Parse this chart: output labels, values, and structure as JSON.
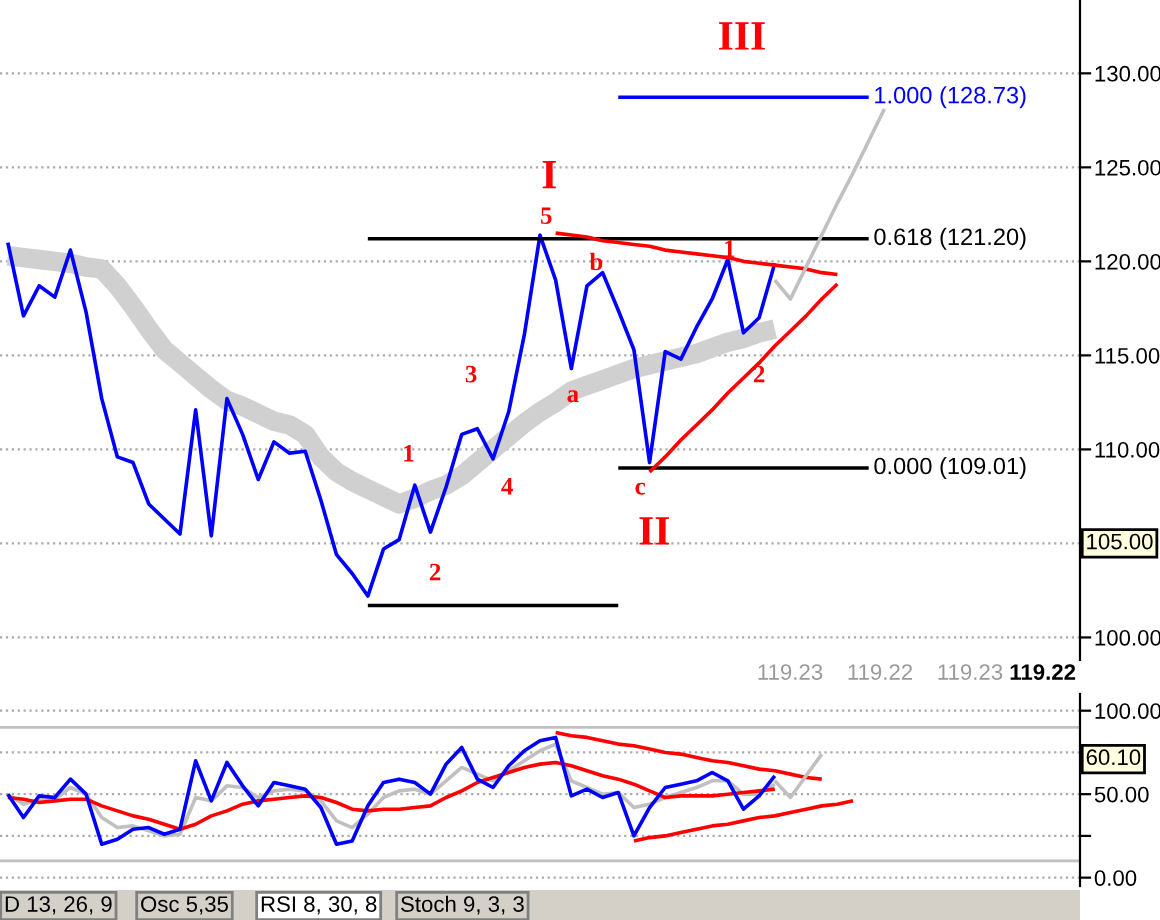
{
  "chart_data": [
    {
      "type": "line",
      "categories": [
        null,
        null,
        null,
        null,
        null,
        null,
        null,
        null,
        null,
        null,
        null,
        null,
        null,
        null,
        null,
        null,
        null,
        null,
        null,
        null,
        null,
        null,
        null,
        null,
        null,
        null,
        null,
        null,
        null,
        null,
        null,
        null,
        null,
        null,
        null,
        null,
        null,
        null,
        null,
        null,
        null,
        null,
        null,
        null,
        null,
        null,
        null,
        null,
        null,
        null,
        null,
        null,
        null,
        null,
        null,
        null,
        null,
        null,
        null,
        null,
        null,
        null,
        null,
        null,
        null,
        null,
        null,
        null,
        null
      ],
      "ylim": [
        98.8,
        133.9
      ],
      "yticks": [
        {
          "value": 100,
          "label": "100.00"
        },
        {
          "value": 105,
          "label": null
        },
        {
          "value": 110,
          "label": "110.00"
        },
        {
          "value": 115,
          "label": "115.00"
        },
        {
          "value": 120,
          "label": "120.00"
        },
        {
          "value": 125,
          "label": "125.00"
        },
        {
          "value": 130,
          "label": "130.00"
        }
      ],
      "grid": "y",
      "tick_labels": "y",
      "series": [
        {
          "color": "#d0d0d0",
          "values": [
            120.3,
            120.2,
            120.1,
            120.0,
            119.9,
            119.7,
            119.6,
            118.7,
            117.6,
            116.4,
            115.3,
            114.6,
            113.9,
            113.2,
            112.6,
            112.3,
            111.9,
            111.5,
            111.3,
            110.8,
            109.6,
            108.8,
            108.3,
            107.9,
            107.5,
            107.1,
            107.4,
            107.8,
            108.1,
            108.6,
            109.3,
            110.0,
            110.7,
            111.4,
            112.0,
            112.5,
            113.1,
            113.4,
            113.7,
            114.0,
            114.3,
            114.5,
            114.7,
            114.9,
            115.1,
            115.4,
            115.7,
            115.9,
            116.2,
            116.4,
            null,
            null,
            null,
            null,
            null,
            null,
            null,
            null,
            null,
            null,
            null,
            null,
            null,
            null,
            null,
            null,
            null,
            null,
            null
          ]
        },
        {
          "color": "#0000ff",
          "values": [
            121.0,
            117.1,
            118.7,
            118.1,
            120.6,
            117.3,
            112.7,
            109.6,
            109.3,
            107.1,
            106.3,
            105.5,
            112.1,
            105.4,
            112.7,
            110.8,
            108.4,
            110.4,
            109.8,
            109.9,
            107.3,
            104.4,
            103.4,
            102.2,
            104.7,
            105.2,
            108.1,
            105.6,
            108.0,
            110.8,
            111.1,
            109.5,
            112.0,
            116.1,
            121.4,
            119.0,
            114.3,
            118.7,
            119.4,
            117.4,
            115.3,
            109.3,
            115.2,
            114.8,
            116.5,
            118.0,
            120.1,
            116.2,
            117.0,
            119.9,
            null,
            null,
            null,
            null,
            null,
            null,
            null,
            null,
            null,
            null,
            null,
            null,
            null,
            null,
            null,
            null,
            null,
            null,
            null
          ]
        },
        {
          "color": "#000000",
          "values": [
            null,
            null,
            null,
            null,
            null,
            null,
            null,
            null,
            null,
            null,
            null,
            null,
            null,
            null,
            null,
            null,
            null,
            null,
            null,
            null,
            null,
            null,
            null,
            101.7,
            101.7,
            101.7,
            101.7,
            101.7,
            101.7,
            101.7,
            101.7,
            101.7,
            101.7,
            101.7,
            101.7,
            101.7,
            101.7,
            101.7,
            101.7,
            101.7,
            null,
            null,
            null,
            null,
            null,
            null,
            null,
            null,
            null,
            null,
            null,
            null,
            null,
            null,
            null,
            null,
            null,
            null,
            null,
            null,
            null,
            null,
            null,
            null,
            null,
            null,
            null,
            null,
            null
          ]
        },
        {
          "color": "#000000",
          "values": [
            null,
            null,
            null,
            null,
            null,
            null,
            null,
            null,
            null,
            null,
            null,
            null,
            null,
            null,
            null,
            null,
            null,
            null,
            null,
            null,
            null,
            null,
            null,
            121.2,
            121.2,
            121.2,
            121.2,
            121.2,
            121.2,
            121.2,
            121.2,
            121.2,
            121.2,
            121.2,
            121.2,
            121.2,
            121.2,
            121.2,
            121.2,
            121.2,
            121.2,
            121.2,
            121.2,
            121.2,
            121.2,
            121.2,
            121.2,
            121.2,
            121.2,
            121.2,
            121.2,
            121.2,
            121.2,
            121.2,
            121.2,
            121.2,
            null,
            null,
            null,
            null,
            null,
            null,
            null,
            null,
            null,
            null,
            null,
            null,
            null
          ]
        },
        {
          "color": "#000000",
          "values": [
            null,
            null,
            null,
            null,
            null,
            null,
            null,
            null,
            null,
            null,
            null,
            null,
            null,
            null,
            null,
            null,
            null,
            null,
            null,
            null,
            null,
            null,
            null,
            null,
            null,
            null,
            null,
            null,
            null,
            null,
            null,
            null,
            null,
            null,
            null,
            null,
            null,
            null,
            null,
            109.01,
            109.01,
            109.01,
            109.01,
            109.01,
            109.01,
            109.01,
            109.01,
            109.01,
            109.01,
            109.01,
            109.01,
            109.01,
            109.01,
            109.01,
            109.01,
            109.01,
            null,
            null,
            null,
            null,
            null,
            null,
            null,
            null,
            null,
            null,
            null,
            null,
            null
          ]
        },
        {
          "color": "#0000ff",
          "values": [
            null,
            null,
            null,
            null,
            null,
            null,
            null,
            null,
            null,
            null,
            null,
            null,
            null,
            null,
            null,
            null,
            null,
            null,
            null,
            null,
            null,
            null,
            null,
            null,
            null,
            null,
            null,
            null,
            null,
            null,
            null,
            null,
            null,
            null,
            null,
            null,
            null,
            null,
            null,
            128.73,
            128.73,
            128.73,
            128.73,
            128.73,
            128.73,
            128.73,
            128.73,
            128.73,
            128.73,
            128.73,
            128.73,
            128.73,
            128.73,
            128.73,
            128.73,
            128.73,
            null,
            null,
            null,
            null,
            null,
            null,
            null,
            null,
            null,
            null,
            null,
            null,
            null
          ]
        },
        {
          "color": "#ff0000",
          "values": [
            null,
            null,
            null,
            null,
            null,
            null,
            null,
            null,
            null,
            null,
            null,
            null,
            null,
            null,
            null,
            null,
            null,
            null,
            null,
            null,
            null,
            null,
            null,
            null,
            null,
            null,
            null,
            null,
            null,
            null,
            null,
            null,
            null,
            null,
            null,
            121.5,
            121.4,
            121.3,
            121.1,
            121.0,
            120.9,
            120.8,
            120.6,
            120.5,
            120.4,
            120.3,
            120.2,
            120.0,
            119.9,
            119.8,
            119.7,
            119.6,
            119.4,
            119.3,
            null,
            null,
            null,
            null,
            null,
            null,
            null,
            null,
            null,
            null,
            null,
            null,
            null,
            null,
            null
          ]
        },
        {
          "color": "#ff0000",
          "values": [
            null,
            null,
            null,
            null,
            null,
            null,
            null,
            null,
            null,
            null,
            null,
            null,
            null,
            null,
            null,
            null,
            null,
            null,
            null,
            null,
            null,
            null,
            null,
            null,
            null,
            null,
            null,
            null,
            null,
            null,
            null,
            null,
            null,
            null,
            null,
            null,
            null,
            null,
            null,
            null,
            null,
            108.8,
            109.6,
            110.5,
            111.3,
            112.1,
            113.0,
            113.8,
            114.6,
            115.5,
            116.3,
            117.1,
            118.0,
            118.8,
            null,
            null,
            null,
            null,
            null,
            null,
            null,
            null,
            null,
            null,
            null,
            null,
            null,
            null,
            null
          ]
        },
        {
          "color": "#c0c0c0",
          "values": [
            null,
            null,
            null,
            null,
            null,
            null,
            null,
            null,
            null,
            null,
            null,
            null,
            null,
            null,
            null,
            null,
            null,
            null,
            null,
            null,
            null,
            null,
            null,
            null,
            null,
            null,
            null,
            null,
            null,
            null,
            null,
            null,
            null,
            null,
            null,
            null,
            null,
            null,
            null,
            null,
            null,
            null,
            null,
            null,
            null,
            null,
            null,
            null,
            null,
            119.0,
            118.0,
            119.7,
            121.4,
            123.1,
            124.7,
            126.4,
            128.1,
            null,
            null,
            null,
            null,
            null,
            null,
            null,
            null,
            null,
            null,
            null,
            null
          ]
        }
      ],
      "annotations": [
        "I",
        "5",
        "b",
        "1",
        "a",
        "2",
        "c",
        "II",
        "III",
        "1",
        "2",
        "3",
        "4",
        "0.618 (121.20)",
        "0.000 (109.01)",
        "1.000 (128.73)",
        {
          "text": "105.00",
          "y": 105
        },
        "119.23",
        "119.22",
        "119.23",
        "119.22"
      ]
    },
    {
      "type": "line",
      "categories": [
        null,
        null,
        null,
        null,
        null,
        null,
        null,
        null,
        null,
        null,
        null,
        null,
        null,
        null,
        null,
        null,
        null,
        null,
        null,
        null,
        null,
        null,
        null,
        null,
        null,
        null,
        null,
        null,
        null,
        null,
        null,
        null,
        null,
        null,
        null,
        null,
        null,
        null,
        null,
        null,
        null,
        null,
        null,
        null,
        null,
        null,
        null,
        null,
        null,
        null,
        null,
        null,
        null,
        null,
        null,
        null,
        null,
        null,
        null,
        null,
        null,
        null,
        null,
        null,
        null,
        null,
        null,
        null,
        null
      ],
      "ylim": [
        -5,
        110
      ],
      "yticks": [
        {
          "value": 0,
          "label": "0.00"
        },
        {
          "value": 25,
          "label": null
        },
        {
          "value": 50,
          "label": "50.00"
        },
        {
          "value": 75,
          "label": null
        },
        {
          "value": 100,
          "label": "100.00"
        }
      ],
      "grid": "y",
      "tick_labels": "y",
      "series": [
        {
          "color": "#c0c0c0",
          "values": [
            50,
            44,
            47,
            47,
            54,
            50,
            36,
            30,
            31,
            28,
            25,
            26,
            48,
            46,
            55,
            54,
            48,
            52,
            53,
            52,
            46,
            34,
            30,
            38,
            48,
            52,
            53,
            50,
            58,
            66,
            62,
            58,
            64,
            70,
            76,
            80,
            58,
            54,
            50,
            51,
            42,
            44,
            48,
            51,
            54,
            58,
            58,
            50,
            50,
            56,
            null,
            null,
            null,
            null,
            null,
            null,
            null,
            null,
            null,
            null,
            null,
            null,
            null,
            null,
            null,
            null,
            null,
            null,
            null
          ]
        },
        {
          "color": "#ff0000",
          "values": [
            48,
            47,
            45,
            46,
            47,
            47,
            43,
            40,
            37,
            35,
            32,
            29,
            32,
            37,
            40,
            44,
            46,
            47,
            48,
            49,
            48,
            45,
            41,
            40,
            41,
            41,
            42,
            43,
            48,
            52,
            57,
            60,
            63,
            66,
            68,
            69,
            67,
            64,
            61,
            59,
            56,
            52,
            48,
            49,
            49,
            49,
            50,
            51,
            52,
            53,
            null,
            null,
            null,
            null,
            null,
            null,
            null,
            null,
            null,
            null,
            null,
            null,
            null,
            null,
            null,
            null,
            null,
            null,
            null
          ]
        },
        {
          "color": "#0000ff",
          "values": [
            50,
            36,
            49,
            48,
            59,
            50,
            20,
            23,
            29,
            30,
            26,
            29,
            70,
            46,
            69,
            55,
            43,
            57,
            55,
            53,
            42,
            20,
            22,
            43,
            57,
            59,
            57,
            50,
            68,
            78,
            59,
            54,
            67,
            76,
            82,
            84,
            49,
            53,
            48,
            51,
            25,
            42,
            54,
            56,
            58,
            63,
            58,
            41,
            49,
            61,
            null,
            null,
            null,
            null,
            null,
            null,
            null,
            null,
            null,
            null,
            null,
            null,
            null,
            null,
            null,
            null,
            null,
            null,
            null
          ]
        },
        {
          "color": "#ff0000",
          "values": [
            null,
            null,
            null,
            null,
            null,
            null,
            null,
            null,
            null,
            null,
            null,
            null,
            null,
            null,
            null,
            null,
            null,
            null,
            null,
            null,
            null,
            null,
            null,
            null,
            null,
            null,
            null,
            null,
            null,
            null,
            null,
            null,
            null,
            null,
            null,
            87,
            85,
            84,
            82,
            80,
            79,
            77,
            75,
            74,
            72,
            70,
            69,
            67,
            65,
            64,
            62,
            60,
            59,
            null,
            null,
            null,
            null,
            null,
            null,
            null,
            null,
            null,
            null,
            null,
            null,
            null,
            null,
            null,
            null
          ]
        },
        {
          "color": "#ff0000",
          "values": [
            null,
            null,
            null,
            null,
            null,
            null,
            null,
            null,
            null,
            null,
            null,
            null,
            null,
            null,
            null,
            null,
            null,
            null,
            null,
            null,
            null,
            null,
            null,
            null,
            null,
            null,
            null,
            null,
            null,
            null,
            null,
            null,
            null,
            null,
            null,
            null,
            null,
            null,
            null,
            null,
            22,
            24,
            25,
            27,
            29,
            31,
            32,
            34,
            36,
            37,
            39,
            41,
            43,
            44,
            46,
            null,
            null,
            null,
            null,
            null,
            null,
            null,
            null,
            null,
            null,
            null,
            null,
            null,
            null
          ]
        },
        {
          "color": "#c0c0c0",
          "values": [
            null,
            null,
            null,
            null,
            null,
            null,
            null,
            null,
            null,
            null,
            null,
            null,
            null,
            null,
            null,
            null,
            null,
            null,
            null,
            null,
            null,
            null,
            null,
            null,
            null,
            null,
            null,
            null,
            null,
            null,
            null,
            null,
            null,
            null,
            null,
            null,
            null,
            null,
            null,
            null,
            null,
            null,
            null,
            null,
            null,
            null,
            null,
            null,
            null,
            58,
            48,
            61,
            74,
            null,
            null,
            null,
            null,
            null,
            null,
            null,
            null,
            null,
            null,
            null,
            null,
            null,
            null,
            null,
            null
          ]
        }
      ],
      "ref_lines": [
        {
          "axis": "y",
          "value": 90,
          "label": null,
          "color": "#c0c0c0"
        },
        {
          "axis": "y",
          "value": 10,
          "label": null,
          "color": "#c0c0c0"
        }
      ],
      "annotations": [
        "60.10",
        "D 13, 26, 9",
        "Osc 5,35",
        "RSI 8, 30, 8",
        "Stoch 9, 3, 3"
      ]
    }
  ]
}
